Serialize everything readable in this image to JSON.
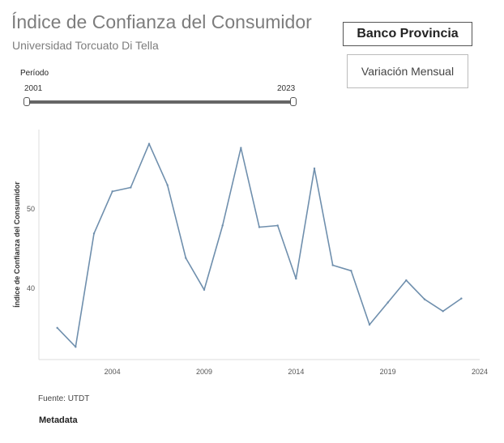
{
  "header": {
    "title": "Índice de Confianza del Consumidor",
    "subtitle": "Universidad Torcuato Di Tella"
  },
  "controls": {
    "primary_button": "Banco Provincia",
    "secondary_button": "Variación Mensual"
  },
  "period_filter": {
    "label": "Período",
    "start": "2001",
    "end": "2023"
  },
  "footer": {
    "source": "Fuente: UTDT",
    "metadata_label": "Metadata"
  },
  "colors": {
    "line": "#6f8fad",
    "axis": "#dddddd",
    "tick_text": "#555555"
  },
  "chart_data": {
    "type": "line",
    "title": "",
    "xlabel": "",
    "ylabel": "Índice de Confianza del Consumidor",
    "x": [
      2001,
      2002,
      2003,
      2004,
      2005,
      2006,
      2007,
      2008,
      2009,
      2010,
      2011,
      2012,
      2013,
      2014,
      2015,
      2016,
      2017,
      2018,
      2019,
      2020,
      2021,
      2022,
      2023
    ],
    "series": [
      {
        "values": [
          35.0,
          32.6,
          46.9,
          52.2,
          52.7,
          58.2,
          53.0,
          43.8,
          39.8,
          47.9,
          57.7,
          47.7,
          47.9,
          41.2,
          55.1,
          42.9,
          42.2,
          35.4,
          38.2,
          41.0,
          38.6,
          37.1,
          38.7
        ]
      }
    ],
    "xlim": [
      2000,
      2024
    ],
    "ylim": [
      31,
      60
    ],
    "xticks": [
      2004,
      2009,
      2014,
      2019,
      2024
    ],
    "yticks": [
      40,
      50
    ],
    "grid": false,
    "legend": "none"
  }
}
